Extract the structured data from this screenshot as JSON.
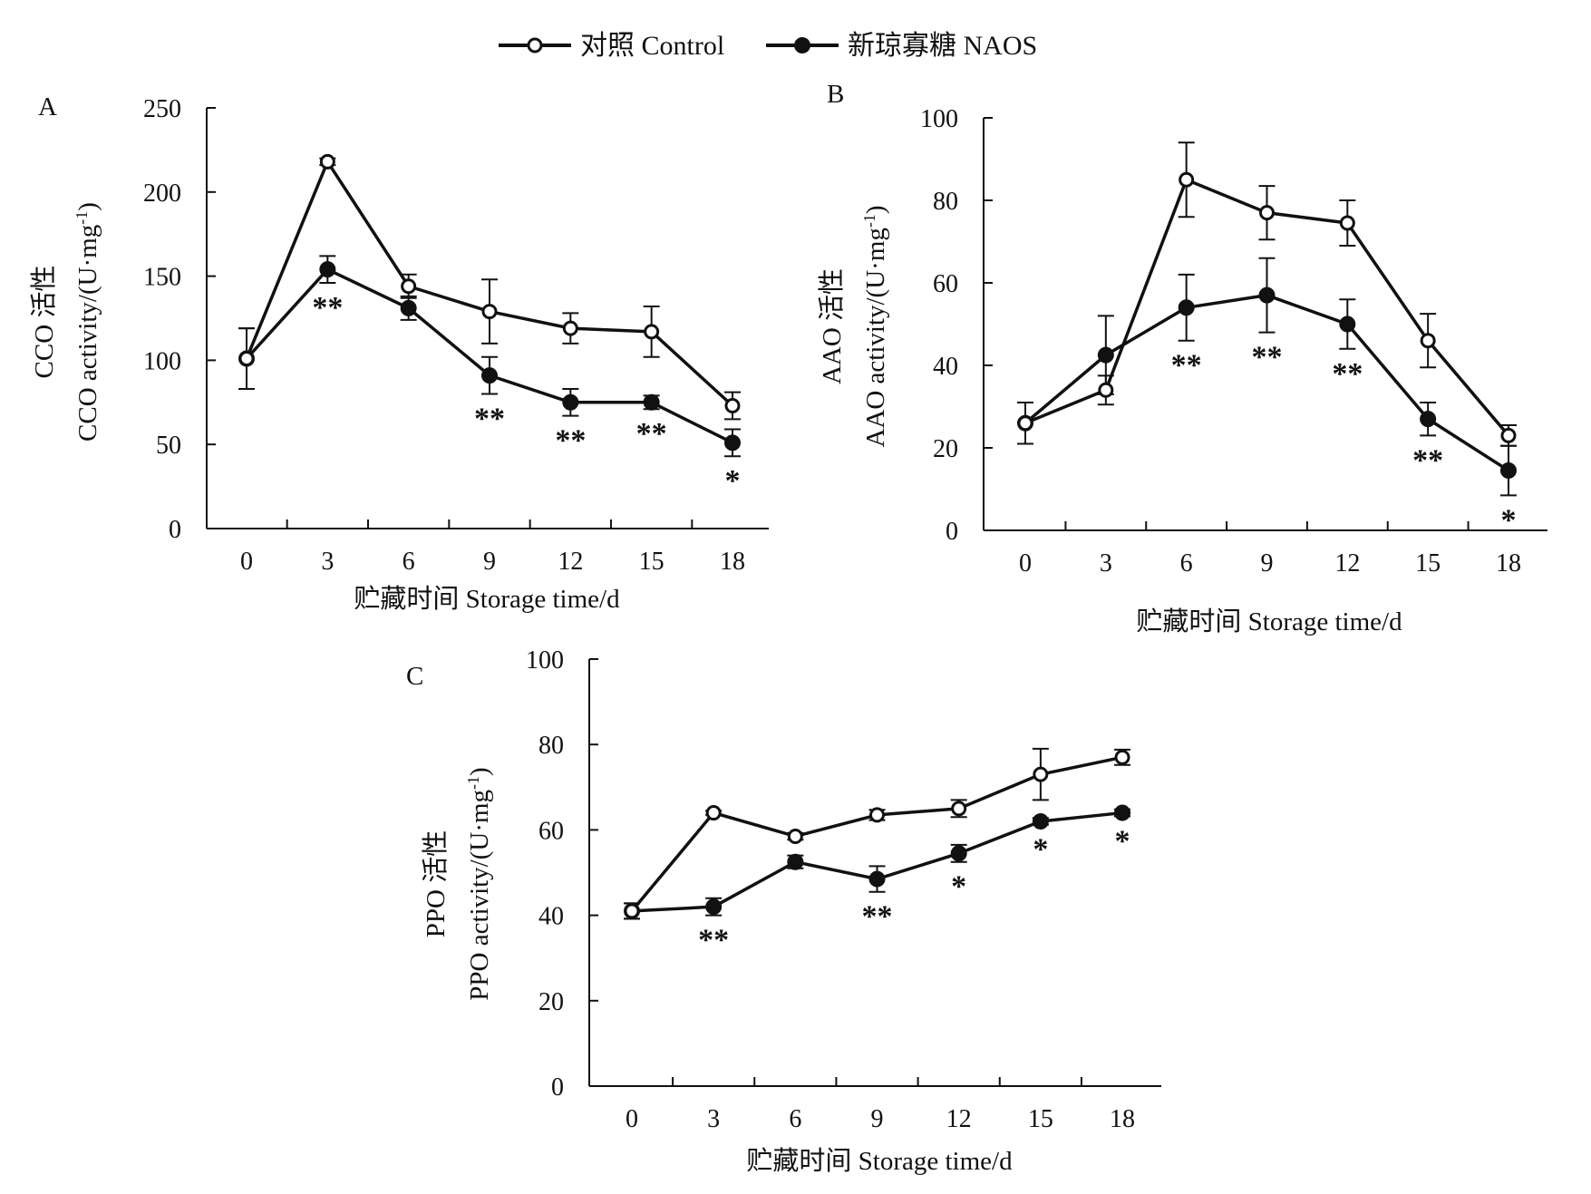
{
  "legend": [
    {
      "label": "对照 Control",
      "marker": "open-circle",
      "color": "#111111"
    },
    {
      "label": "新琼寡糖 NAOS",
      "marker": "filled-circle",
      "color": "#111111"
    }
  ],
  "chart_data": [
    {
      "panel": "A",
      "type": "line",
      "xlabel": "贮藏时间 Storage time/d",
      "ylabel_cn": "CCO 活性",
      "ylabel_en": "CCO activity/(U·mg",
      "ylabel_sup": "-1",
      "ylim": [
        0,
        250
      ],
      "yticks": [
        0,
        50,
        100,
        150,
        200,
        250
      ],
      "categories": [
        "0",
        "3",
        "6",
        "9",
        "12",
        "15",
        "18"
      ],
      "series": [
        {
          "name": "对照 Control",
          "marker": "open-circle",
          "values": [
            101,
            218,
            144,
            129,
            119,
            117,
            73
          ],
          "errors": [
            18,
            2,
            7,
            19,
            9,
            15,
            8
          ]
        },
        {
          "name": "新琼寡糖 NAOS",
          "marker": "filled-circle",
          "values": [
            101,
            154,
            131,
            91,
            75,
            75,
            51
          ],
          "errors": [
            18,
            8,
            7,
            11,
            8,
            4,
            8
          ]
        }
      ],
      "significance": [
        "",
        "**",
        "",
        "**",
        "**",
        "**",
        "*"
      ],
      "grid": false
    },
    {
      "panel": "B",
      "type": "line",
      "xlabel": "贮藏时间 Storage time/d",
      "ylabel_cn": "AAO 活性",
      "ylabel_en": "AAO activity/(U·mg",
      "ylabel_sup": "-1",
      "ylim": [
        0,
        100
      ],
      "yticks": [
        0,
        20,
        40,
        60,
        80,
        100
      ],
      "categories": [
        "0",
        "3",
        "6",
        "9",
        "12",
        "15",
        "18"
      ],
      "series": [
        {
          "name": "对照 Control",
          "marker": "open-circle",
          "values": [
            26,
            34,
            85,
            77,
            74.5,
            46,
            23
          ],
          "errors": [
            5,
            3.5,
            9,
            6.5,
            5.5,
            6.5,
            2.5
          ]
        },
        {
          "name": "新琼寡糖 NAOS",
          "marker": "filled-circle",
          "values": [
            26,
            42.5,
            54,
            57,
            50,
            27,
            14.5
          ],
          "errors": [
            5,
            9.5,
            8,
            9,
            6,
            4,
            6
          ]
        }
      ],
      "significance": [
        "",
        "",
        "**",
        "**",
        "**",
        "**",
        "*"
      ],
      "grid": false
    },
    {
      "panel": "C",
      "type": "line",
      "xlabel": "贮藏时间 Storage time/d",
      "ylabel_cn": "PPO 活性",
      "ylabel_en": "PPO activity/(U·mg",
      "ylabel_sup": "-1",
      "ylim": [
        0,
        100
      ],
      "yticks": [
        0,
        20,
        40,
        60,
        80,
        100
      ],
      "categories": [
        "0",
        "3",
        "6",
        "9",
        "12",
        "15",
        "18"
      ],
      "series": [
        {
          "name": "对照 Control",
          "marker": "open-circle",
          "values": [
            41,
            64,
            58.5,
            63.5,
            65,
            73,
            77
          ],
          "errors": [
            1.8,
            0.5,
            0.8,
            1.2,
            2,
            6,
            1.8
          ]
        },
        {
          "name": "新琼寡糖 NAOS",
          "marker": "filled-circle",
          "values": [
            41,
            42,
            52.5,
            48.5,
            54.5,
            62,
            64
          ],
          "errors": [
            1.8,
            2,
            1.5,
            3,
            2,
            0.8,
            0.8
          ]
        }
      ],
      "significance": [
        "",
        "**",
        "",
        "**",
        "*",
        "*",
        "*"
      ],
      "grid": false
    }
  ]
}
